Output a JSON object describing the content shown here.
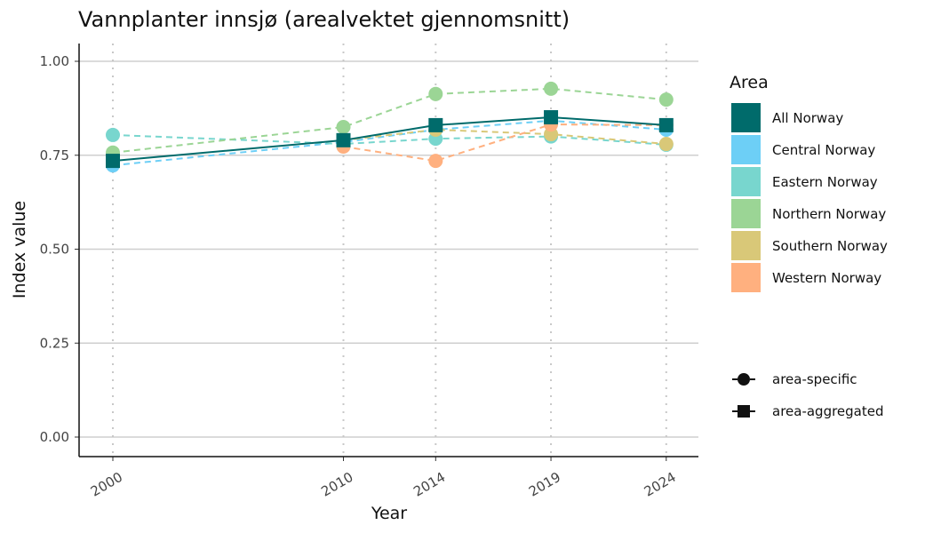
{
  "chart_data": {
    "type": "line",
    "title": "Vannplanter innsjø (arealvektet gjennomsnitt)",
    "xlabel": "Year",
    "ylabel": "Index value",
    "ylim": [
      0,
      1
    ],
    "x": [
      2000,
      2010,
      2014,
      2019,
      2024
    ],
    "x_ticks": [
      "2000",
      "2010",
      "2014",
      "2019",
      "2024"
    ],
    "y_ticks": [
      "0.00",
      "0.25",
      "0.50",
      "0.75",
      "1.00"
    ],
    "y_tick_values": [
      0,
      0.25,
      0.5,
      0.75,
      1.0
    ],
    "legend_title": "Area",
    "legend_position": "right",
    "series": [
      {
        "name": "All Norway",
        "color": "#006B6B",
        "shape": "square",
        "dashed": false,
        "values": [
          0.735,
          0.79,
          0.83,
          0.851,
          0.83
        ]
      },
      {
        "name": "Central Norway",
        "color": "#6DCFF6",
        "shape": "circle",
        "dashed": true,
        "values": [
          0.723,
          0.785,
          0.818,
          0.842,
          0.818
        ]
      },
      {
        "name": "Eastern Norway",
        "color": "#78D6CE",
        "shape": "circle",
        "dashed": true,
        "values": [
          0.804,
          0.78,
          0.794,
          0.8,
          0.778
        ]
      },
      {
        "name": "Northern Norway",
        "color": "#9BD595",
        "shape": "circle",
        "dashed": true,
        "values": [
          0.757,
          0.825,
          0.913,
          0.927,
          0.898
        ]
      },
      {
        "name": "Southern Norway",
        "color": "#D9C878",
        "shape": "circle",
        "dashed": true,
        "values": [
          null,
          0.79,
          0.818,
          0.806,
          0.78
        ]
      },
      {
        "name": "Western Norway",
        "color": "#FFB07F",
        "shape": "circle",
        "dashed": true,
        "values": [
          null,
          0.773,
          0.735,
          0.832,
          0.83
        ]
      }
    ],
    "shape_legend": [
      {
        "label": "area-specific",
        "shape": "circle"
      },
      {
        "label": "area-aggregated",
        "shape": "square"
      }
    ]
  }
}
